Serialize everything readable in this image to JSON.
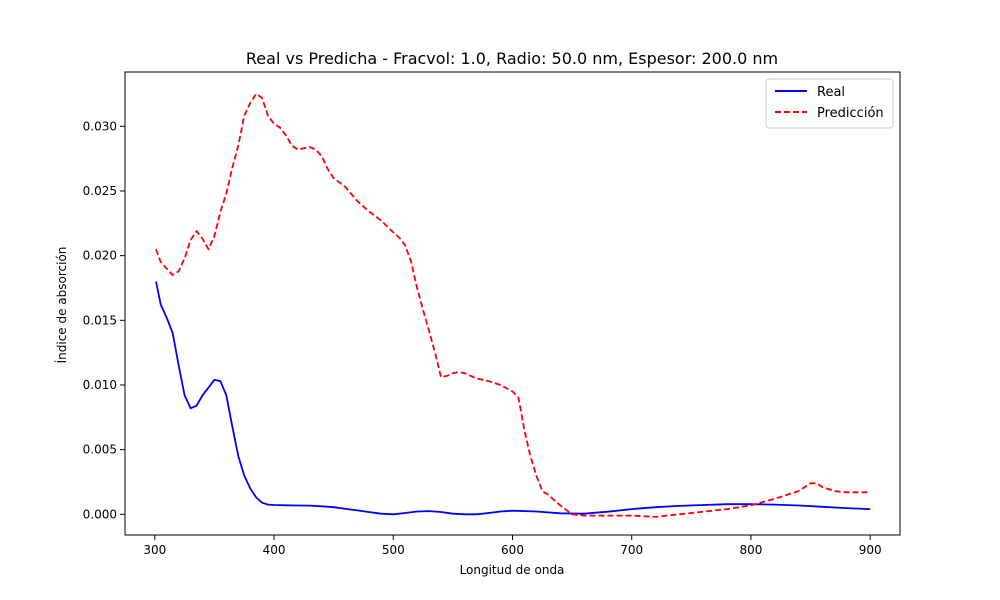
{
  "chart_data": {
    "type": "line",
    "title": "Real vs Predicha - Fracvol: 1.0, Radio: 50.0 nm, Espesor: 200.0 nm",
    "xlabel": "Longitud de onda",
    "ylabel": "Índice de absorción",
    "xlim": [
      275,
      925
    ],
    "ylim": [
      -0.0016,
      0.0342
    ],
    "xticks": [
      300,
      400,
      500,
      600,
      700,
      800,
      900
    ],
    "yticks": [
      0.0,
      0.005,
      0.01,
      0.015,
      0.02,
      0.025,
      0.03
    ],
    "ytick_labels": [
      "0.000",
      "0.005",
      "0.010",
      "0.015",
      "0.020",
      "0.025",
      "0.030"
    ],
    "grid": false,
    "legend_position": "top-right",
    "series": [
      {
        "name": "Real",
        "color": "#0000ff",
        "style": "solid",
        "x": [
          301,
          305,
          310,
          315,
          320,
          325,
          330,
          335,
          340,
          345,
          350,
          355,
          360,
          365,
          370,
          375,
          380,
          385,
          390,
          395,
          400,
          410,
          420,
          430,
          440,
          450,
          460,
          470,
          480,
          490,
          500,
          510,
          520,
          530,
          540,
          550,
          560,
          570,
          580,
          590,
          600,
          620,
          640,
          660,
          680,
          700,
          720,
          740,
          760,
          780,
          800,
          820,
          840,
          860,
          880,
          900
        ],
        "y": [
          0.018,
          0.0162,
          0.0152,
          0.014,
          0.0115,
          0.0092,
          0.0082,
          0.0084,
          0.0092,
          0.0098,
          0.0104,
          0.0103,
          0.0092,
          0.0068,
          0.0045,
          0.003,
          0.002,
          0.0013,
          0.0009,
          0.00075,
          0.00072,
          0.0007,
          0.00068,
          0.00067,
          0.00062,
          0.00055,
          0.00042,
          0.0003,
          0.00017,
          5e-05,
          0.0,
          0.0001,
          0.00022,
          0.00025,
          0.00018,
          5e-05,
          0.0,
          0.0,
          0.0001,
          0.00022,
          0.00028,
          0.00022,
          8e-05,
          5e-05,
          0.0002,
          0.0004,
          0.00055,
          0.00065,
          0.00072,
          0.00078,
          0.00078,
          0.00075,
          0.00068,
          0.00058,
          0.00048,
          0.0004
        ]
      },
      {
        "name": "Predicción",
        "color": "#ff0000",
        "style": "dashed",
        "x": [
          301,
          305,
          310,
          315,
          320,
          325,
          330,
          335,
          340,
          345,
          350,
          355,
          360,
          365,
          370,
          375,
          380,
          385,
          390,
          395,
          400,
          405,
          410,
          415,
          420,
          425,
          430,
          435,
          440,
          445,
          450,
          460,
          470,
          480,
          490,
          500,
          505,
          510,
          515,
          520,
          525,
          530,
          535,
          540,
          545,
          550,
          555,
          560,
          570,
          580,
          590,
          600,
          605,
          610,
          615,
          620,
          625,
          630,
          640,
          650,
          660,
          680,
          700,
          720,
          740,
          760,
          780,
          800,
          820,
          840,
          845,
          850,
          855,
          860,
          870,
          880,
          890,
          900
        ],
        "y": [
          0.0205,
          0.0195,
          0.019,
          0.0185,
          0.0188,
          0.0198,
          0.0212,
          0.0219,
          0.0213,
          0.0205,
          0.0215,
          0.0234,
          0.0248,
          0.0268,
          0.0285,
          0.0308,
          0.0318,
          0.0325,
          0.0322,
          0.0308,
          0.0302,
          0.0299,
          0.0293,
          0.0285,
          0.0282,
          0.0283,
          0.0284,
          0.0282,
          0.0277,
          0.0267,
          0.026,
          0.0253,
          0.0242,
          0.0234,
          0.0227,
          0.0218,
          0.0214,
          0.0208,
          0.0195,
          0.0175,
          0.0158,
          0.0142,
          0.0125,
          0.0106,
          0.0107,
          0.0109,
          0.011,
          0.0109,
          0.0105,
          0.0103,
          0.01,
          0.0095,
          0.009,
          0.0065,
          0.0045,
          0.003,
          0.0018,
          0.0015,
          0.0007,
          0.0,
          -0.0001,
          -0.0001,
          -0.0001,
          -0.0002,
          0.0,
          0.0002,
          0.0004,
          0.0007,
          0.0012,
          0.0018,
          0.0021,
          0.0024,
          0.0024,
          0.0021,
          0.0018,
          0.0017,
          0.0017,
          0.0017
        ]
      }
    ]
  }
}
